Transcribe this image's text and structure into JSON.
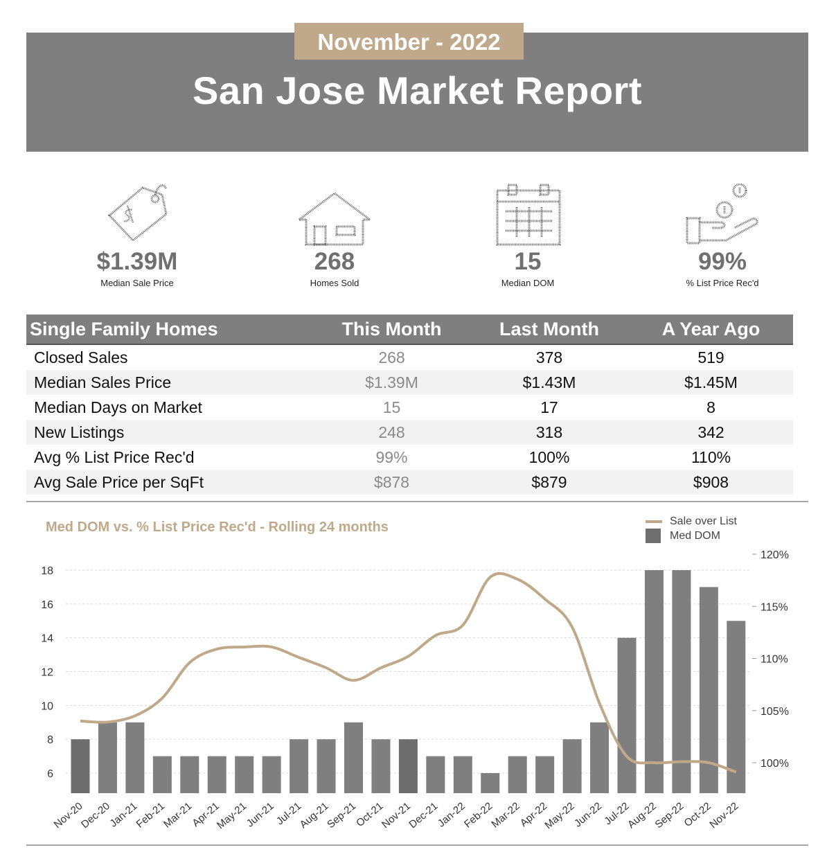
{
  "header": {
    "month": "November - 2022",
    "title": "San Jose Market Report"
  },
  "stats": [
    {
      "icon": "price-tag-icon",
      "value": "$1.39M",
      "label": "Median Sale Price"
    },
    {
      "icon": "house-icon",
      "value": "268",
      "label": "Homes Sold"
    },
    {
      "icon": "calendar-icon",
      "value": "15",
      "label": "Median DOM"
    },
    {
      "icon": "hand-coins-icon",
      "value": "99%",
      "label": "% List Price Rec'd"
    }
  ],
  "table": {
    "headers": [
      "Single Family Homes",
      "This Month",
      "Last Month",
      "A Year Ago"
    ],
    "rows": [
      {
        "metric": "Closed Sales",
        "this_month": "268",
        "last_month": "378",
        "year_ago": "519"
      },
      {
        "metric": "Median Sales Price",
        "this_month": "$1.39M",
        "last_month": "$1.43M",
        "year_ago": "$1.45M"
      },
      {
        "metric": "Median Days on Market",
        "this_month": "15",
        "last_month": "17",
        "year_ago": "8"
      },
      {
        "metric": "New Listings",
        "this_month": "248",
        "last_month": "318",
        "year_ago": "342"
      },
      {
        "metric": "Avg % List Price Rec'd",
        "this_month": "99%",
        "last_month": "100%",
        "year_ago": "110%"
      },
      {
        "metric": "Avg Sale Price per SqFt",
        "this_month": "$878",
        "last_month": "$879",
        "year_ago": "$908"
      }
    ]
  },
  "chart_data": {
    "type": "bar",
    "title": "Med DOM  vs. % List Price Rec'd - Rolling 24 months",
    "categories": [
      "Nov-20",
      "Dec-20",
      "Jan-21",
      "Feb-21",
      "Mar-21",
      "Apr-21",
      "May-21",
      "Jun-21",
      "Jul-21",
      "Aug-21",
      "Sep-21",
      "Oct-21",
      "Nov-21",
      "Dec-21",
      "Jan-22",
      "Feb-22",
      "Mar-22",
      "Apr-22",
      "May-22",
      "Jun-22",
      "Jul-22",
      "Aug-22",
      "Sep-22",
      "Oct-22",
      "Nov-22"
    ],
    "series": [
      {
        "name": "Med DOM",
        "type": "bar",
        "axis": "left",
        "values": [
          8,
          9,
          9,
          7,
          7,
          7,
          7,
          7,
          8,
          8,
          9,
          8,
          8,
          7,
          7,
          6,
          7,
          7,
          8,
          9,
          14,
          18,
          18,
          17,
          15
        ]
      },
      {
        "name": "Sale over List",
        "type": "line",
        "axis": "right",
        "values": [
          104,
          103.9,
          104.5,
          106.2,
          109.6,
          110.9,
          111.1,
          111.1,
          110.1,
          109.1,
          107.9,
          109.1,
          110.2,
          112.2,
          113.2,
          117.8,
          117.6,
          115.7,
          113.0,
          105.7,
          100.6,
          100.0,
          100.1,
          100.0,
          99.1
        ]
      }
    ],
    "y_left": {
      "min": 4.8,
      "max": 19.2,
      "ticks": [
        6,
        8,
        10,
        12,
        14,
        16,
        18
      ]
    },
    "y_right": {
      "min": 97.0,
      "max": 121.0,
      "ticks": [
        100,
        105,
        110,
        115,
        120
      ],
      "tick_labels": [
        "100%",
        "105%",
        "110%",
        "115%",
        "120%"
      ]
    },
    "legend": [
      {
        "name": "Sale over List",
        "kind": "line"
      },
      {
        "name": "Med DOM",
        "kind": "bar"
      }
    ],
    "legend_position": "top-right",
    "colors": {
      "bar": "#7f7f7f",
      "bar_dark": "#6d6d6d",
      "line": "#bfa98a"
    }
  },
  "colors": {
    "accent": "#bfa98a",
    "banner": "#7f7f7f"
  }
}
